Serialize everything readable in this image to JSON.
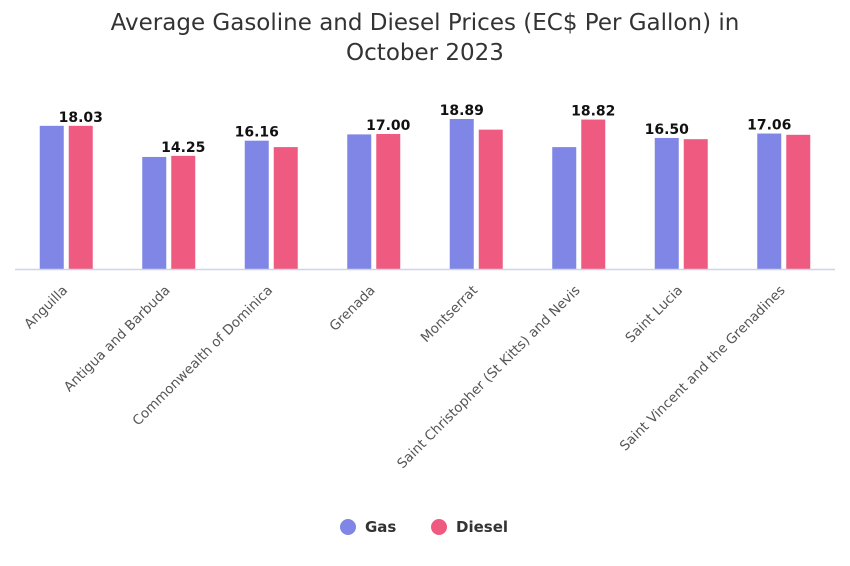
{
  "chart_data": {
    "type": "bar",
    "title_lines": [
      "Average Gasoline and Diesel Prices (EC$ Per Gallon) in",
      "October 2023"
    ],
    "categories": [
      "Anguilla",
      "Antigua and Barbuda",
      "Commonwealth of Dominica",
      "Grenada",
      "Montserrat",
      "Saint Christopher (St Kitts) and Nevis",
      "Saint Lucia",
      "Saint Vincent and the Grenadines"
    ],
    "series": [
      {
        "name": "Gas",
        "color": "#7f86e6",
        "values": [
          18.03,
          14.11,
          16.16,
          16.95,
          18.89,
          15.35,
          16.5,
          17.06
        ]
      },
      {
        "name": "Diesel",
        "color": "#ef5b80",
        "values": [
          18.03,
          14.25,
          15.35,
          17.0,
          17.55,
          18.82,
          16.35,
          16.9
        ]
      }
    ],
    "data_labels": [
      {
        "category": "Anguilla",
        "text": "18.03",
        "series": "Diesel"
      },
      {
        "category": "Antigua and Barbuda",
        "text": "14.25",
        "series": "Diesel"
      },
      {
        "category": "Commonwealth of Dominica",
        "text": "16.16",
        "series": "Gas"
      },
      {
        "category": "Grenada",
        "text": "17.00",
        "series": "Diesel"
      },
      {
        "category": "Montserrat",
        "text": "18.89",
        "series": "Gas"
      },
      {
        "category": "Saint Christopher (St Kitts) and Nevis",
        "text": "18.82",
        "series": "Diesel"
      },
      {
        "category": "Saint Lucia",
        "text": "16.50",
        "series": "Gas"
      },
      {
        "category": "Saint Vincent and the Grenadines",
        "text": "17.06",
        "series": "Gas"
      }
    ],
    "ylim": [
      0,
      18.89
    ],
    "grid": false,
    "legend_position": "bottom-center",
    "xlabel": "",
    "ylabel": ""
  }
}
